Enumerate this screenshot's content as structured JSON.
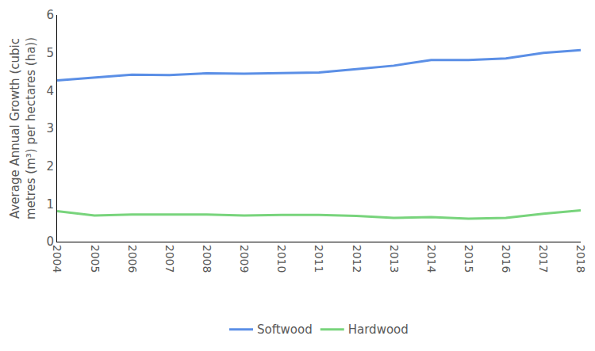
{
  "chart_data": {
    "type": "line",
    "y_label": "Average Annual Growth (cubic metres (m³) per hectares (ha))",
    "categories": [
      "2004",
      "2005",
      "2006",
      "2007",
      "2008",
      "2009",
      "2010",
      "2011",
      "2012",
      "2013",
      "2014",
      "2015",
      "2016",
      "2017",
      "2018"
    ],
    "series": [
      {
        "name": "Softwood",
        "color": "#5b8fe6",
        "values": [
          4.27,
          4.35,
          4.42,
          4.41,
          4.46,
          4.45,
          4.47,
          4.48,
          4.57,
          4.66,
          4.81,
          4.81,
          4.85,
          5.0,
          5.07
        ]
      },
      {
        "name": "Hardwood",
        "color": "#78d47c",
        "values": [
          0.81,
          0.69,
          0.72,
          0.72,
          0.72,
          0.69,
          0.71,
          0.71,
          0.68,
          0.63,
          0.65,
          0.61,
          0.63,
          0.74,
          0.83
        ]
      }
    ],
    "ylim": [
      0,
      6
    ],
    "yticks": [
      0,
      1,
      2,
      3,
      4,
      5,
      6
    ],
    "grid": false,
    "legend": "bottom"
  }
}
